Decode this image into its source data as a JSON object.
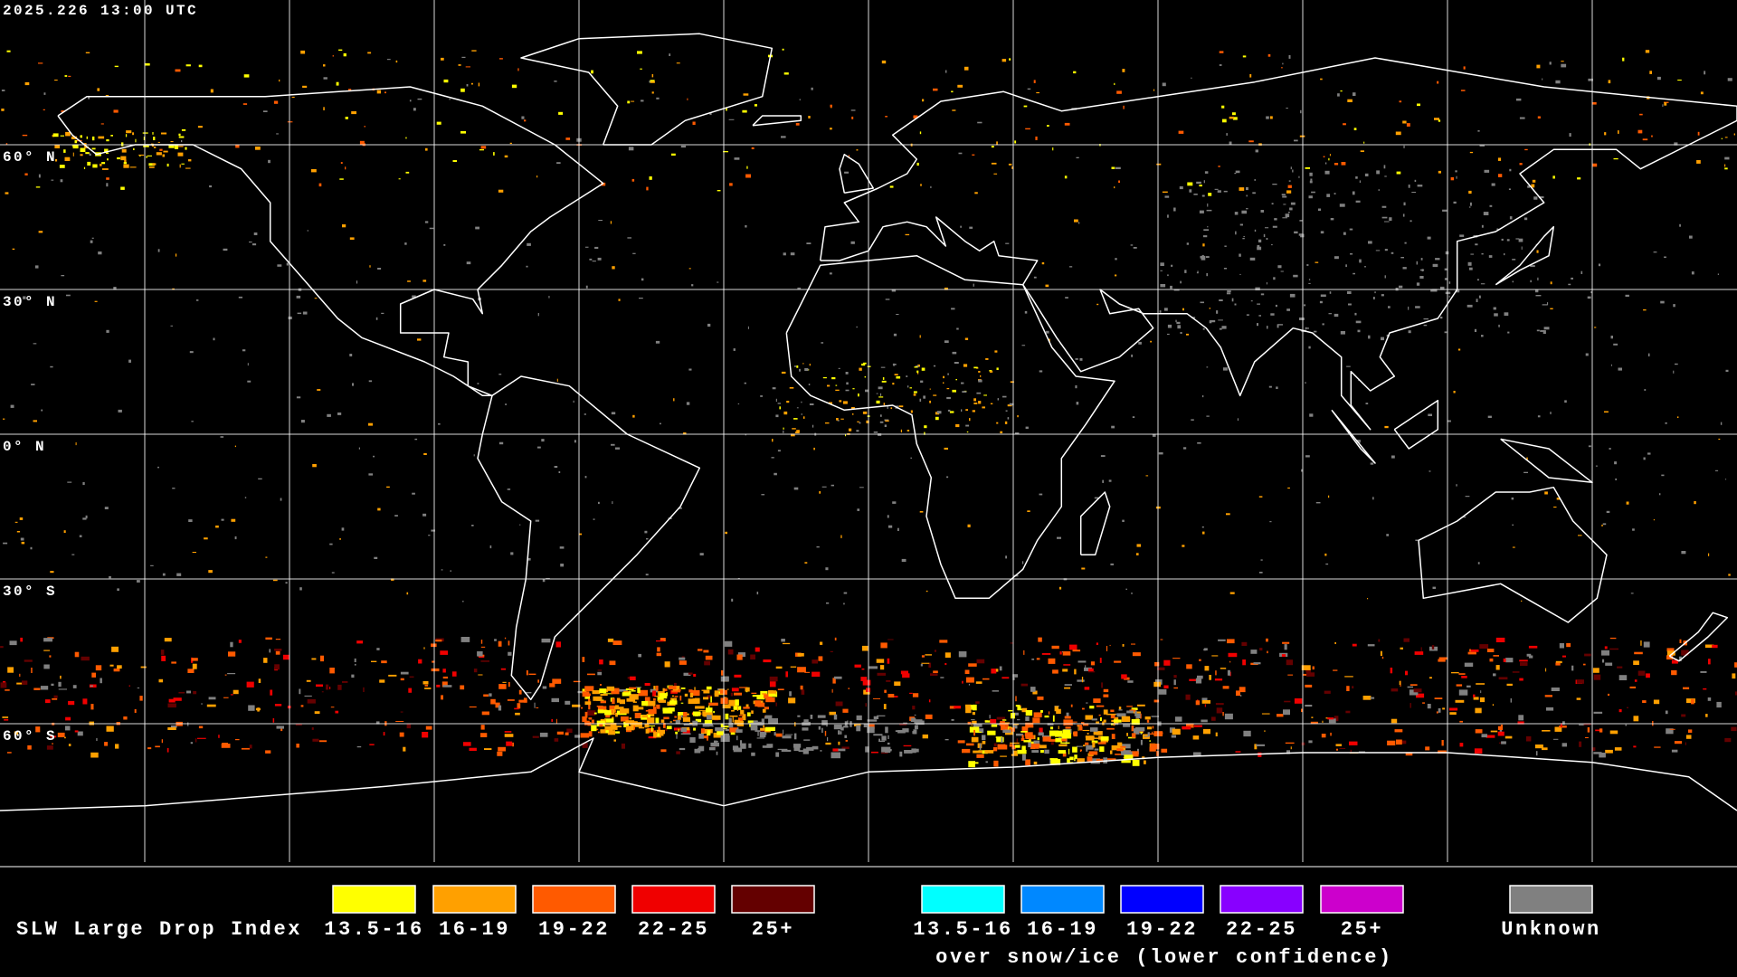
{
  "header": {
    "timestamp": "2025.226 13:00 UTC"
  },
  "map": {
    "latitude_labels": [
      "60° N",
      "30° N",
      "0° N",
      "30° S",
      "60° S"
    ]
  },
  "legend": {
    "title": "SLW Large Drop Index",
    "groups": [
      {
        "items": [
          {
            "label": "13.5-16",
            "color": "#ffff00"
          },
          {
            "label": "16-19",
            "color": "#ffa000"
          },
          {
            "label": "19-22",
            "color": "#ff5a00"
          },
          {
            "label": "22-25",
            "color": "#f00000"
          },
          {
            "label": "25+",
            "color": "#640000"
          }
        ]
      },
      {
        "items": [
          {
            "label": "13.5-16",
            "color": "#00ffff"
          },
          {
            "label": "16-19",
            "color": "#0088ff"
          },
          {
            "label": "19-22",
            "color": "#0000ff"
          },
          {
            "label": "22-25",
            "color": "#8800ff"
          },
          {
            "label": "25+",
            "color": "#cc00cc"
          }
        ],
        "caption": "over snow/ice (lower confidence)"
      },
      {
        "items": [
          {
            "label": "Unknown",
            "color": "#808080"
          }
        ]
      }
    ]
  }
}
